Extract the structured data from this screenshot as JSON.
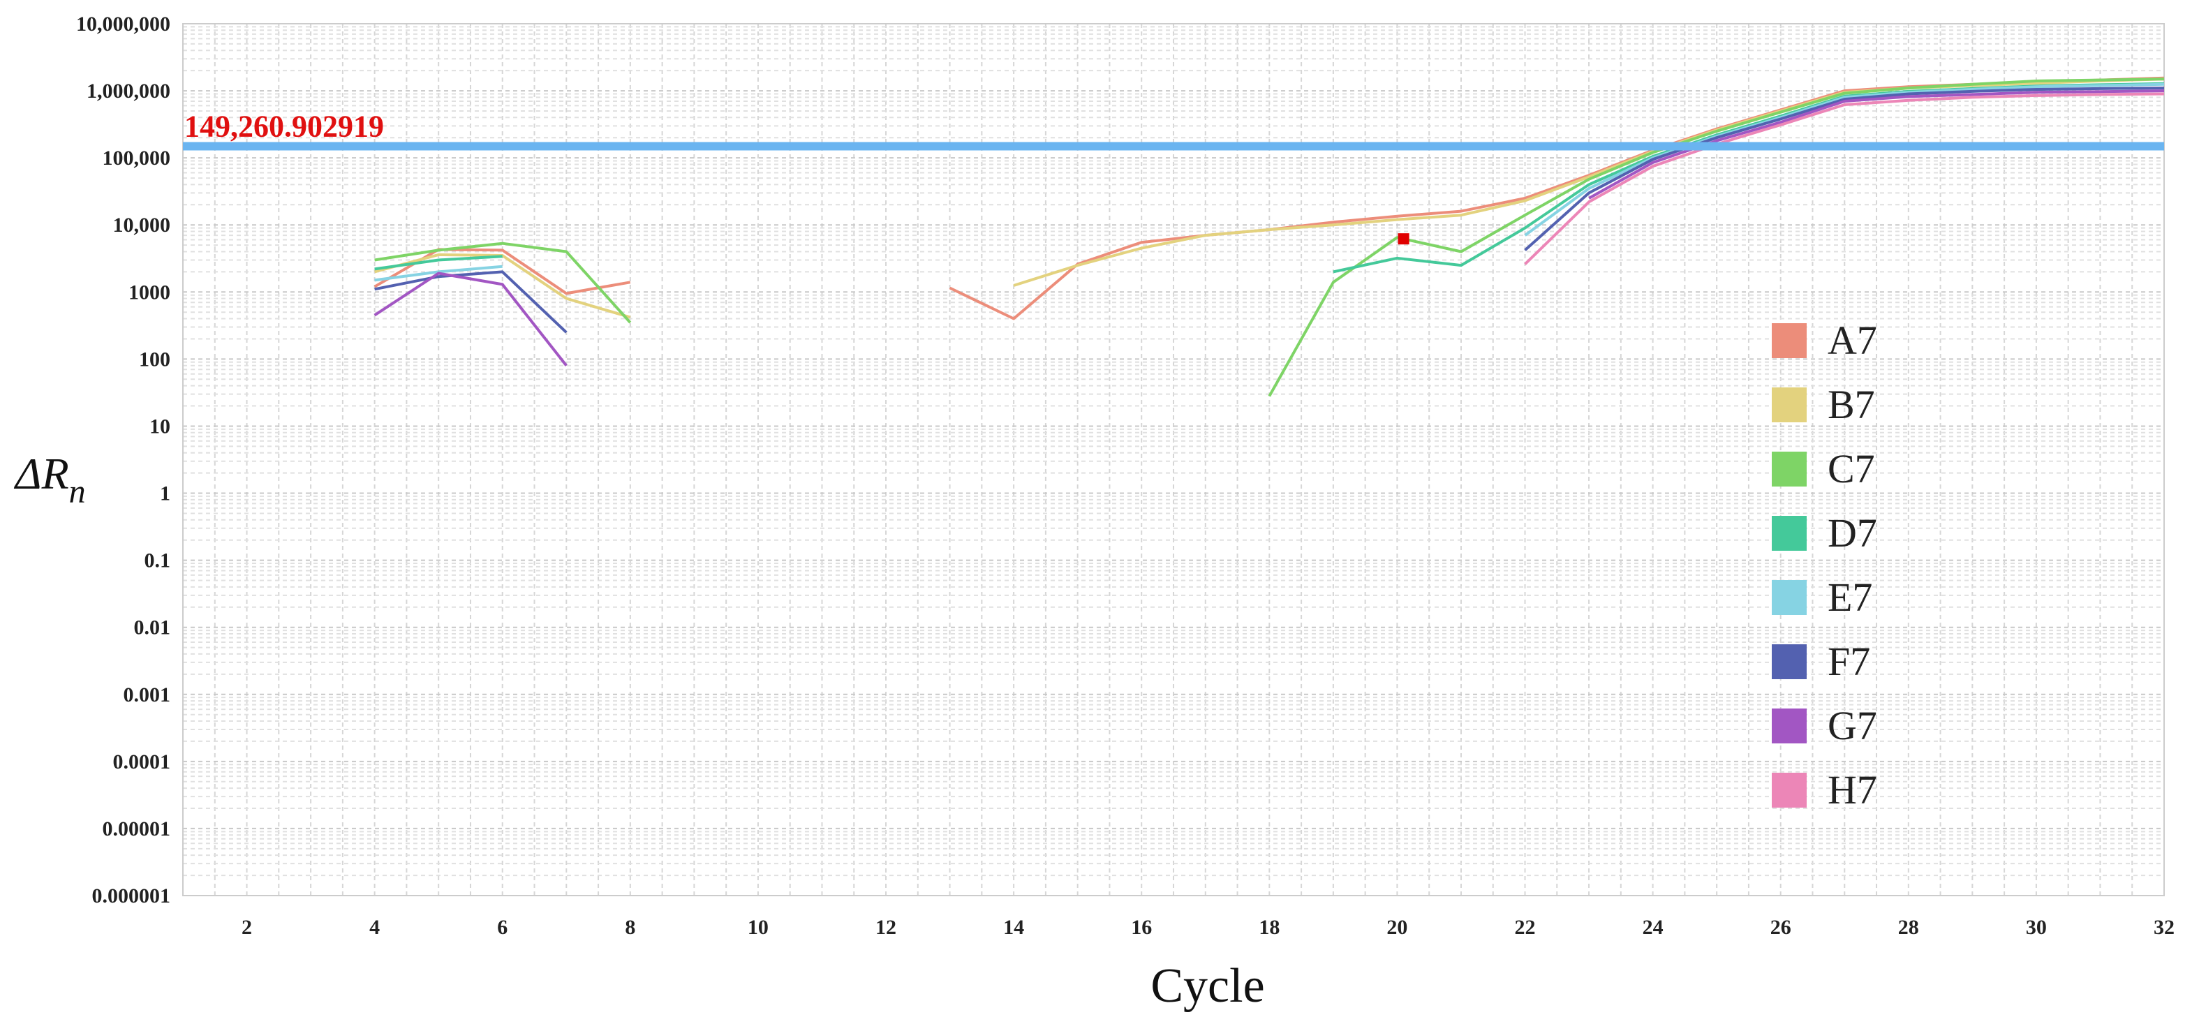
{
  "chart_data": {
    "type": "line",
    "yscale": "log",
    "xlabel": "Cycle",
    "ylabel": "ΔR",
    "ylabel_sub": "n",
    "xlim": [
      1,
      32
    ],
    "ylim": [
      1e-06,
      10000000
    ],
    "x_ticks": [
      2,
      4,
      6,
      8,
      10,
      12,
      14,
      16,
      18,
      20,
      22,
      24,
      26,
      28,
      30,
      32
    ],
    "y_ticks": [
      {
        "value": 1e-06,
        "label": "0.000001"
      },
      {
        "value": 1e-05,
        "label": "0.00001"
      },
      {
        "value": 0.0001,
        "label": "0.0001"
      },
      {
        "value": 0.001,
        "label": "0.001"
      },
      {
        "value": 0.01,
        "label": "0.01"
      },
      {
        "value": 0.1,
        "label": "0.1"
      },
      {
        "value": 1,
        "label": "1"
      },
      {
        "value": 10,
        "label": "10"
      },
      {
        "value": 100,
        "label": "100"
      },
      {
        "value": 1000,
        "label": "1000"
      },
      {
        "value": 10000,
        "label": "10,000"
      },
      {
        "value": 100000,
        "label": "100,000"
      },
      {
        "value": 1000000,
        "label": "1,000,000"
      },
      {
        "value": 10000000,
        "label": "10,000,000"
      }
    ],
    "threshold": {
      "value": 149260.902919,
      "label": "149,260.902919",
      "color": "#6ab4f0"
    },
    "marker": {
      "x": 20.1,
      "y": 6200,
      "color": "#e00000"
    },
    "grid": true,
    "legend_position": "right",
    "series": [
      {
        "name": "A7",
        "color": "#ec8d7a",
        "segments": [
          [
            [
              4,
              1200
            ],
            [
              5,
              4300
            ],
            [
              6,
              4200
            ],
            [
              7,
              950
            ],
            [
              8,
              1400
            ]
          ],
          [
            [
              13,
              1150
            ],
            [
              14,
              400
            ],
            [
              15,
              2600
            ],
            [
              16,
              5500
            ],
            [
              17,
              7000
            ],
            [
              18,
              8500
            ],
            [
              19,
              11000
            ],
            [
              20,
              13500
            ],
            [
              21,
              16000
            ],
            [
              22,
              25000
            ],
            [
              23,
              55000
            ],
            [
              24,
              130000
            ],
            [
              25,
              270000
            ],
            [
              26,
              520000
            ],
            [
              27,
              1000000
            ],
            [
              28,
              1150000
            ],
            [
              29,
              1250000
            ],
            [
              30,
              1350000
            ],
            [
              31,
              1450000
            ],
            [
              32,
              1550000
            ]
          ]
        ]
      },
      {
        "name": "B7",
        "color": "#e3d27e",
        "segments": [
          [
            [
              4,
              2000
            ],
            [
              5,
              3600
            ],
            [
              6,
              3500
            ],
            [
              7,
              800
            ],
            [
              8,
              420
            ]
          ],
          [
            [
              14,
              1250
            ],
            [
              15,
              2500
            ],
            [
              16,
              4500
            ],
            [
              17,
              7000
            ],
            [
              18,
              8500
            ],
            [
              19,
              10000
            ],
            [
              20,
              12000
            ],
            [
              21,
              14000
            ],
            [
              22,
              23000
            ],
            [
              23,
              52000
            ],
            [
              24,
              125000
            ],
            [
              25,
              260000
            ],
            [
              26,
              500000
            ],
            [
              27,
              950000
            ],
            [
              28,
              1100000
            ],
            [
              29,
              1200000
            ],
            [
              30,
              1300000
            ],
            [
              31,
              1400000
            ],
            [
              32,
              1500000
            ]
          ]
        ]
      },
      {
        "name": "C7",
        "color": "#7ed466",
        "segments": [
          [
            [
              4,
              3000
            ],
            [
              5,
              4200
            ],
            [
              6,
              5300
            ],
            [
              7,
              4000
            ],
            [
              8,
              350
            ]
          ],
          [
            [
              18,
              28
            ],
            [
              19,
              1400
            ],
            [
              20,
              6500
            ],
            [
              21,
              4000
            ],
            [
              22,
              14000
            ],
            [
              23,
              48000
            ],
            [
              24,
              120000
            ],
            [
              25,
              250000
            ],
            [
              26,
              480000
            ],
            [
              27,
              920000
            ],
            [
              28,
              1100000
            ],
            [
              29,
              1250000
            ],
            [
              30,
              1400000
            ],
            [
              31,
              1450000
            ],
            [
              32,
              1500000
            ]
          ]
        ]
      },
      {
        "name": "D7",
        "color": "#44c99a",
        "segments": [
          [
            [
              4,
              2200
            ],
            [
              5,
              3000
            ],
            [
              6,
              3400
            ]
          ],
          [
            [
              19,
              2000
            ],
            [
              20,
              3200
            ],
            [
              21,
              2500
            ],
            [
              22,
              9000
            ],
            [
              23,
              40000
            ],
            [
              24,
              105000
            ],
            [
              25,
              220000
            ],
            [
              26,
              420000
            ],
            [
              27,
              830000
            ],
            [
              28,
              980000
            ],
            [
              29,
              1080000
            ],
            [
              30,
              1180000
            ],
            [
              31,
              1230000
            ],
            [
              32,
              1280000
            ]
          ]
        ]
      },
      {
        "name": "E7",
        "color": "#86d3e3",
        "segments": [
          [
            [
              4,
              1500
            ],
            [
              5,
              2000
            ],
            [
              6,
              2400
            ]
          ],
          [
            [
              22,
              7000
            ],
            [
              23,
              35000
            ],
            [
              24,
              100000
            ],
            [
              25,
              210000
            ],
            [
              26,
              400000
            ],
            [
              27,
              800000
            ],
            [
              28,
              950000
            ],
            [
              29,
              1050000
            ],
            [
              30,
              1150000
            ],
            [
              31,
              1200000
            ],
            [
              32,
              1250000
            ]
          ]
        ]
      },
      {
        "name": "F7",
        "color": "#5361b0",
        "segments": [
          [
            [
              4,
              1100
            ],
            [
              5,
              1700
            ],
            [
              6,
              2000
            ],
            [
              7,
              250
            ]
          ],
          [
            [
              22,
              4200
            ],
            [
              23,
              30000
            ],
            [
              24,
              95000
            ],
            [
              25,
              200000
            ],
            [
              26,
              380000
            ],
            [
              27,
              750000
            ],
            [
              28,
              900000
            ],
            [
              29,
              980000
            ],
            [
              30,
              1050000
            ],
            [
              31,
              1080000
            ],
            [
              32,
              1100000
            ]
          ]
        ]
      },
      {
        "name": "G7",
        "color": "#a256c3",
        "segments": [
          [
            [
              4,
              450
            ],
            [
              5,
              1900
            ],
            [
              6,
              1300
            ],
            [
              7,
              80
            ]
          ],
          [
            [
              23,
              25000
            ],
            [
              24,
              85000
            ],
            [
              25,
              180000
            ],
            [
              26,
              340000
            ],
            [
              27,
              700000
            ],
            [
              28,
              820000
            ],
            [
              29,
              880000
            ],
            [
              30,
              950000
            ],
            [
              31,
              970000
            ],
            [
              32,
              1000000
            ]
          ]
        ]
      },
      {
        "name": "H7",
        "color": "#ec86b7",
        "segments": [
          [
            [
              22,
              2600
            ],
            [
              23,
              22000
            ],
            [
              24,
              75000
            ],
            [
              25,
              160000
            ],
            [
              26,
              310000
            ],
            [
              27,
              620000
            ],
            [
              28,
              720000
            ],
            [
              29,
              800000
            ],
            [
              30,
              850000
            ],
            [
              31,
              880000
            ],
            [
              32,
              900000
            ]
          ]
        ]
      }
    ]
  }
}
